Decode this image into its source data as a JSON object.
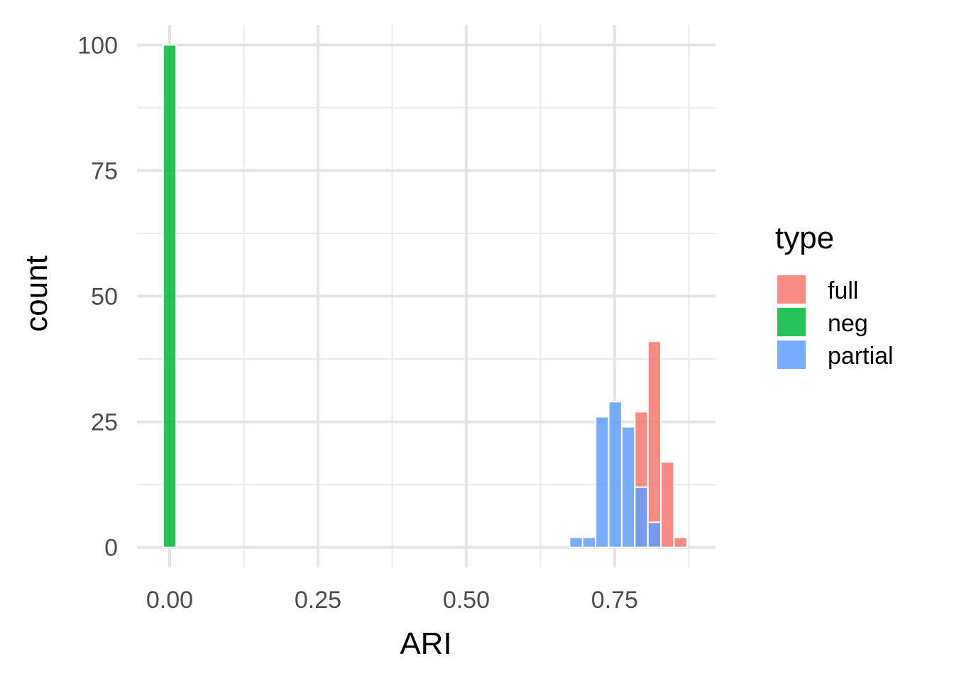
{
  "chart_data": {
    "type": "bar",
    "subtype": "histogram",
    "title": "",
    "xlabel": "ARI",
    "ylabel": "count",
    "xlim": [
      -0.055,
      0.92
    ],
    "ylim": [
      -4,
      104
    ],
    "bin_width": 0.0219,
    "x_ticks": [
      {
        "value": 0.0,
        "label": "0.00"
      },
      {
        "value": 0.25,
        "label": "0.25"
      },
      {
        "value": 0.5,
        "label": "0.50"
      },
      {
        "value": 0.75,
        "label": "0.75"
      }
    ],
    "y_ticks": [
      {
        "value": 0,
        "label": "0"
      },
      {
        "value": 25,
        "label": "25"
      },
      {
        "value": 50,
        "label": "50"
      },
      {
        "value": 75,
        "label": "75"
      },
      {
        "value": 100,
        "label": "100"
      }
    ],
    "grid": true,
    "legend": {
      "title": "type",
      "position": "right"
    },
    "series": [
      {
        "name": "full",
        "color": "#F8766D",
        "bins": [
          {
            "x": 0.795,
            "count": 27
          },
          {
            "x": 0.817,
            "count": 41
          },
          {
            "x": 0.839,
            "count": 17
          },
          {
            "x": 0.861,
            "count": 2
          }
        ]
      },
      {
        "name": "neg",
        "color": "#00BA38",
        "bins": [
          {
            "x": 0.0,
            "count": 100
          }
        ]
      },
      {
        "name": "partial",
        "color": "#619CFF",
        "bins": [
          {
            "x": 0.685,
            "count": 2
          },
          {
            "x": 0.707,
            "count": 2
          },
          {
            "x": 0.729,
            "count": 26
          },
          {
            "x": 0.751,
            "count": 29
          },
          {
            "x": 0.773,
            "count": 24
          },
          {
            "x": 0.795,
            "count": 12
          },
          {
            "x": 0.817,
            "count": 5
          }
        ]
      }
    ]
  }
}
